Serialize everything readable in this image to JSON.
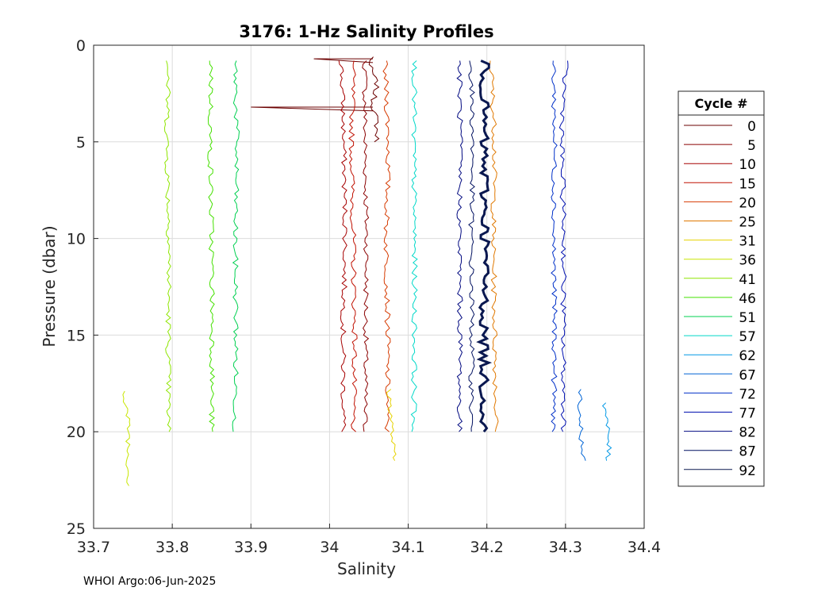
{
  "chart_data": {
    "type": "line",
    "title": "3176: 1-Hz Salinity Profiles",
    "xlabel": "Salinity",
    "ylabel": "Pressure (dbar)",
    "xlim": [
      33.7,
      34.4
    ],
    "ylim": [
      0,
      25
    ],
    "y_reversed": true,
    "grid": true,
    "x_ticks": [
      "33.7",
      "33.8",
      "33.9",
      "34",
      "34.1",
      "34.2",
      "34.3",
      "34.4"
    ],
    "y_ticks": [
      "0",
      "5",
      "10",
      "15",
      "20",
      "25"
    ],
    "legend": {
      "title": "Cycle #",
      "placement": "outside-right"
    },
    "series": [
      {
        "name": "0",
        "color": "#6b0000",
        "profile": [
          [
            34.055,
            0.6
          ],
          [
            34.05,
            1.0
          ],
          [
            34.06,
            2.0
          ],
          [
            34.055,
            3.0
          ],
          [
            34.06,
            4.0
          ],
          [
            34.06,
            5.0
          ]
        ],
        "spikes": [
          [
            0.7,
            33.98
          ],
          [
            3.2,
            33.9
          ]
        ]
      },
      {
        "name": "5",
        "color": "#8a0000",
        "profile": [
          [
            34.045,
            0.8
          ],
          [
            34.045,
            5
          ],
          [
            34.047,
            10
          ],
          [
            34.046,
            15
          ],
          [
            34.045,
            20
          ]
        ]
      },
      {
        "name": "10",
        "color": "#a60000",
        "profile": [
          [
            34.015,
            0.8
          ],
          [
            34.018,
            5
          ],
          [
            34.02,
            10
          ],
          [
            34.017,
            15
          ],
          [
            34.018,
            20
          ]
        ]
      },
      {
        "name": "15",
        "color": "#c01000",
        "profile": [
          [
            34.03,
            0.8
          ],
          [
            34.028,
            5
          ],
          [
            34.03,
            10
          ],
          [
            34.032,
            15
          ],
          [
            34.03,
            20
          ]
        ]
      },
      {
        "name": "20",
        "color": "#d63a00",
        "profile": [
          [
            34.07,
            0.8
          ],
          [
            34.075,
            5
          ],
          [
            34.072,
            10
          ],
          [
            34.074,
            15
          ],
          [
            34.073,
            20
          ]
        ]
      },
      {
        "name": "25",
        "color": "#e07800",
        "profile": [
          [
            34.205,
            0.8
          ],
          [
            34.21,
            5
          ],
          [
            34.208,
            10
          ],
          [
            34.21,
            15
          ],
          [
            34.212,
            20
          ]
        ]
      },
      {
        "name": "31",
        "color": "#e6d200",
        "profile": [
          [
            34.075,
            17.8
          ],
          [
            34.078,
            19
          ],
          [
            34.08,
            20.5
          ],
          [
            34.082,
            21.5
          ]
        ]
      },
      {
        "name": "36",
        "color": "#c8e600",
        "profile": [
          [
            33.74,
            17.9
          ],
          [
            33.742,
            19
          ],
          [
            33.745,
            20
          ],
          [
            33.744,
            21
          ],
          [
            33.745,
            22.8
          ]
        ]
      },
      {
        "name": "41",
        "color": "#8ee600",
        "profile": [
          [
            33.795,
            0.8
          ],
          [
            33.793,
            5
          ],
          [
            33.796,
            10
          ],
          [
            33.795,
            15
          ],
          [
            33.795,
            20
          ]
        ]
      },
      {
        "name": "46",
        "color": "#44e000",
        "profile": [
          [
            33.85,
            0.8
          ],
          [
            33.848,
            5
          ],
          [
            33.85,
            10
          ],
          [
            33.851,
            15
          ],
          [
            33.85,
            20
          ]
        ]
      },
      {
        "name": "51",
        "color": "#00d050",
        "profile": [
          [
            33.88,
            0.8
          ],
          [
            33.882,
            5
          ],
          [
            33.88,
            10
          ],
          [
            33.881,
            15
          ],
          [
            33.88,
            20
          ]
        ]
      },
      {
        "name": "57",
        "color": "#00d8c8",
        "profile": [
          [
            34.108,
            0.8
          ],
          [
            34.107,
            5
          ],
          [
            34.108,
            10
          ],
          [
            34.108,
            15
          ],
          [
            34.107,
            20
          ]
        ]
      },
      {
        "name": "62",
        "color": "#0098e6",
        "profile": [
          [
            34.35,
            18.5
          ],
          [
            34.352,
            19.5
          ],
          [
            34.355,
            20.5
          ],
          [
            34.354,
            21.5
          ]
        ]
      },
      {
        "name": "67",
        "color": "#0064d6",
        "profile": [
          [
            34.32,
            17.8
          ],
          [
            34.318,
            19
          ],
          [
            34.32,
            20
          ],
          [
            34.322,
            21.5
          ]
        ]
      },
      {
        "name": "72",
        "color": "#0030c8",
        "profile": [
          [
            34.285,
            0.8
          ],
          [
            34.286,
            5
          ],
          [
            34.285,
            10
          ],
          [
            34.286,
            15
          ],
          [
            34.285,
            20
          ]
        ]
      },
      {
        "name": "77",
        "color": "#0010b0",
        "profile": [
          [
            34.3,
            0.8
          ],
          [
            34.295,
            5
          ],
          [
            34.298,
            10
          ],
          [
            34.297,
            15
          ],
          [
            34.298,
            20
          ]
        ]
      },
      {
        "name": "82",
        "color": "#000880",
        "profile": [
          [
            34.165,
            0.8
          ],
          [
            34.166,
            5
          ],
          [
            34.165,
            10
          ],
          [
            34.166,
            15
          ],
          [
            34.165,
            20
          ]
        ]
      },
      {
        "name": "87",
        "color": "#001060",
        "profile": [
          [
            34.18,
            0.8
          ],
          [
            34.182,
            5
          ],
          [
            34.18,
            10
          ],
          [
            34.181,
            15
          ],
          [
            34.18,
            20
          ]
        ]
      },
      {
        "name": "92",
        "color": "#0a1850",
        "profile": [
          [
            34.197,
            0.8
          ],
          [
            34.196,
            5
          ],
          [
            34.198,
            10
          ],
          [
            34.196,
            15
          ],
          [
            34.197,
            20
          ]
        ]
      }
    ]
  },
  "footer": "WHOI Argo:06-Jun-2025"
}
